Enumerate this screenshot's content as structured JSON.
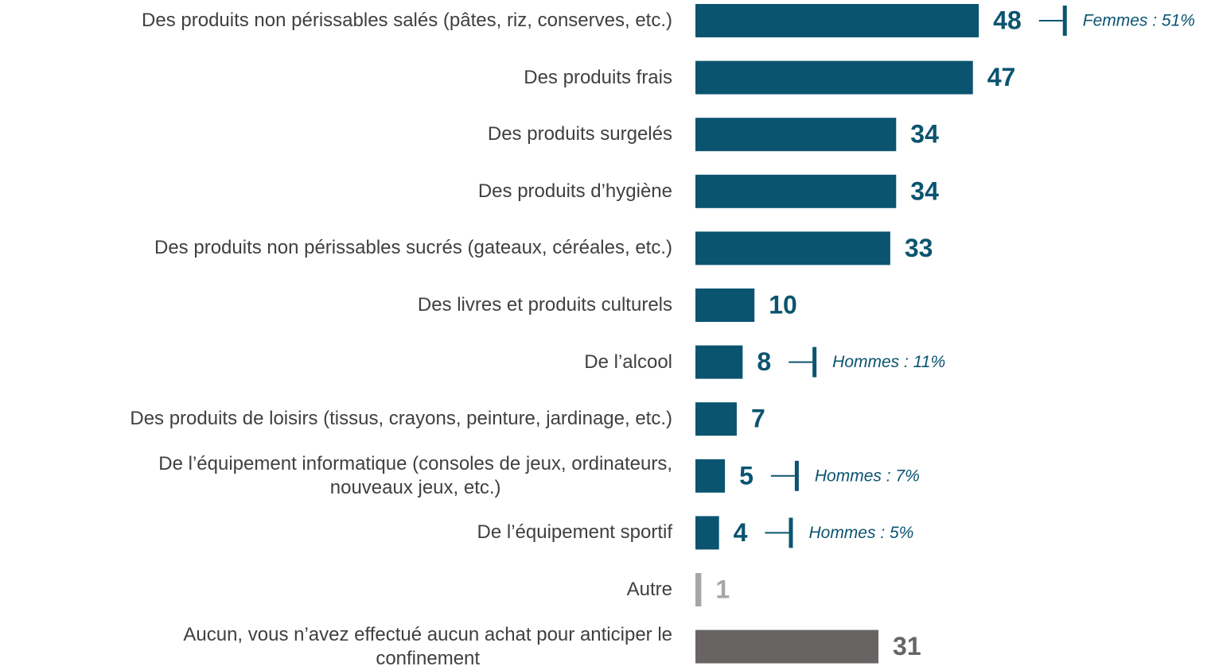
{
  "chart_data": {
    "type": "bar",
    "orientation": "horizontal",
    "categories": [
      "Des produits non périssables salés (pâtes, riz, conserves, etc.)",
      "Des produits frais",
      "Des produits surgelés",
      "Des produits d’hygiène",
      "Des produits non périssables sucrés (gateaux, céréales, etc.)",
      "Des livres et produits culturels",
      "De l’alcool",
      "Des produits de loisirs (tissus, crayons, peinture, jardinage, etc.)",
      "De l’équipement informatique (consoles de jeux, ordinateurs,\nnouveaux jeux, etc.)",
      "De l’équipement sportif",
      "Autre",
      "Aucun, vous n’avez effectué aucun achat pour anticiper le\nconfinement"
    ],
    "values": [
      48,
      47,
      34,
      34,
      33,
      10,
      8,
      7,
      5,
      4,
      1,
      31
    ],
    "colors": [
      "#0b5470",
      "#0b5470",
      "#0b5470",
      "#0b5470",
      "#0b5470",
      "#0b5470",
      "#0b5470",
      "#0b5470",
      "#0b5470",
      "#0b5470",
      "#a6a6a6",
      "#686464"
    ],
    "annotations": [
      "Femmes : 51%",
      null,
      null,
      null,
      null,
      null,
      "Hommes : 11%",
      null,
      "Hommes : 7%",
      "Hommes : 5%",
      null,
      null
    ]
  }
}
